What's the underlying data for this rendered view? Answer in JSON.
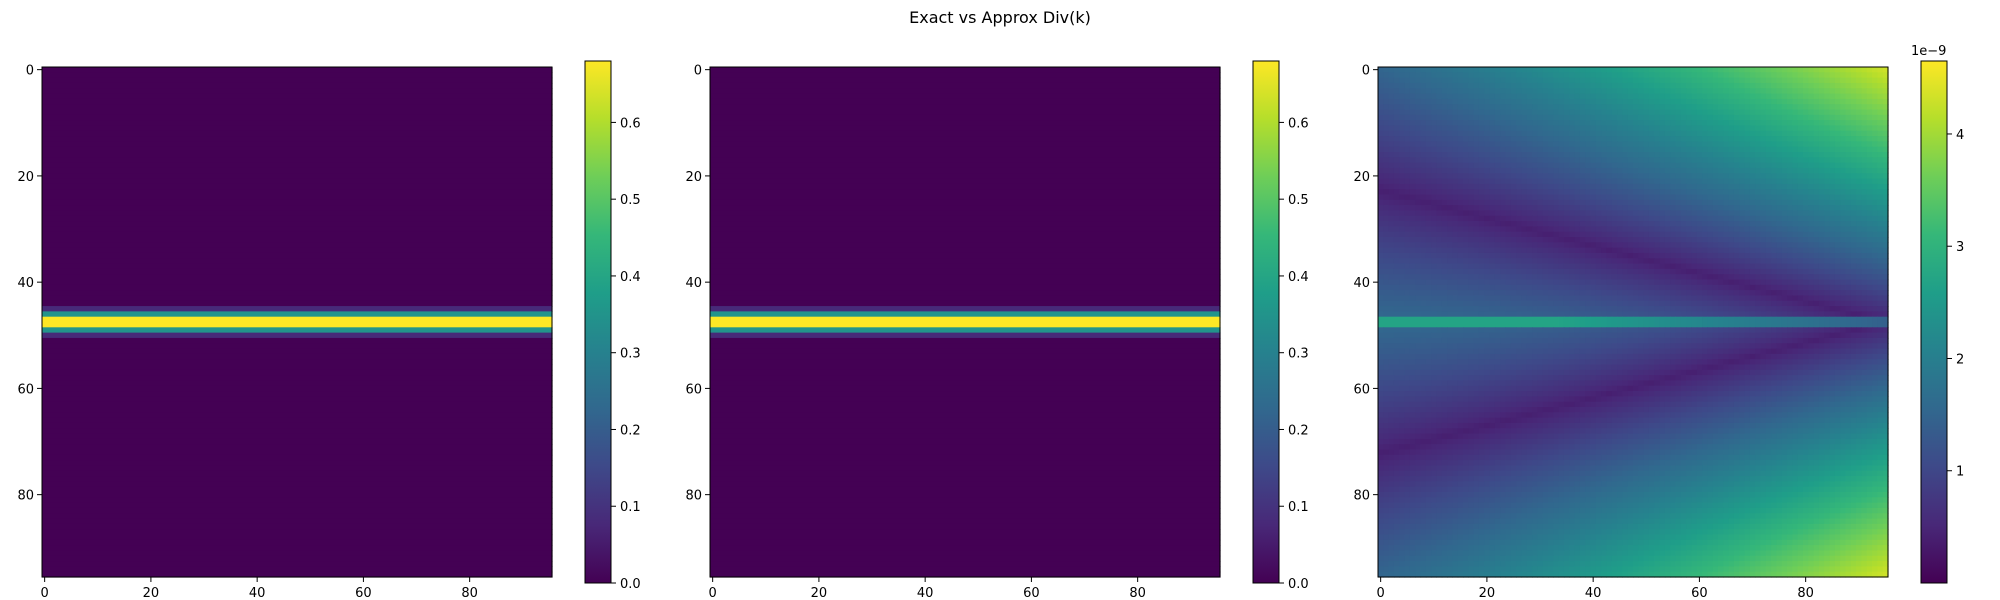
{
  "figure": {
    "title": "Exact vs Approx Div(k)"
  },
  "colormap": {
    "name": "viridis",
    "stops": [
      "#440154",
      "#482878",
      "#3e4989",
      "#31688e",
      "#26828e",
      "#1f9e89",
      "#35b779",
      "#6ece58",
      "#b5de2b",
      "#fde725"
    ]
  },
  "chart_data": [
    {
      "type": "heatmap",
      "title": "",
      "xlabel": "",
      "ylabel": "",
      "grid_size": [
        96,
        96
      ],
      "x_ticks": [
        0,
        20,
        40,
        60,
        80
      ],
      "y_ticks": [
        0,
        20,
        40,
        60,
        80
      ],
      "description_field": "gaussian band along rows",
      "band_center_row": 47.5,
      "band_rows": {
        "44": 0.0,
        "45": 0.08,
        "46": 0.35,
        "47": 0.68,
        "48": 0.68,
        "49": 0.35,
        "50": 0.08,
        "51": 0.0
      },
      "vmin": 0.0,
      "vmax": 0.68,
      "colorbar_ticks": [
        "0.0",
        "0.1",
        "0.2",
        "0.3",
        "0.4",
        "0.5",
        "0.6"
      ],
      "colorbar_tick_values": [
        0.0,
        0.1,
        0.2,
        0.3,
        0.4,
        0.5,
        0.6
      ],
      "colorbar_offset": ""
    },
    {
      "type": "heatmap",
      "title": "",
      "xlabel": "",
      "ylabel": "",
      "grid_size": [
        96,
        96
      ],
      "x_ticks": [
        0,
        20,
        40,
        60,
        80
      ],
      "y_ticks": [
        0,
        20,
        40,
        60,
        80
      ],
      "band_center_row": 47.5,
      "band_rows": {
        "44": 0.0,
        "45": 0.08,
        "46": 0.35,
        "47": 0.68,
        "48": 0.68,
        "49": 0.35,
        "50": 0.08,
        "51": 0.0
      },
      "vmin": 0.0,
      "vmax": 0.68,
      "colorbar_ticks": [
        "0.0",
        "0.1",
        "0.2",
        "0.3",
        "0.4",
        "0.5",
        "0.6"
      ],
      "colorbar_tick_values": [
        0.0,
        0.1,
        0.2,
        0.3,
        0.4,
        0.5,
        0.6
      ],
      "colorbar_offset": ""
    },
    {
      "type": "heatmap",
      "title": "",
      "xlabel": "",
      "ylabel": "",
      "grid_size": [
        96,
        96
      ],
      "x_ticks": [
        0,
        20,
        40,
        60,
        80
      ],
      "y_ticks": [
        0,
        20,
        40,
        60,
        80
      ],
      "vmin": 0.0,
      "vmax": 4.65,
      "scale_note": "values in units of 1e-9",
      "corner_values": {
        "top_left": 2.1,
        "top_right": 4.6,
        "bottom_left": 2.1,
        "bottom_right": 4.6
      },
      "band_row_value": 2.6,
      "colorbar_ticks": [
        "1",
        "2",
        "3",
        "4"
      ],
      "colorbar_tick_values": [
        1,
        2,
        3,
        4
      ],
      "colorbar_offset": "1e−9"
    }
  ]
}
